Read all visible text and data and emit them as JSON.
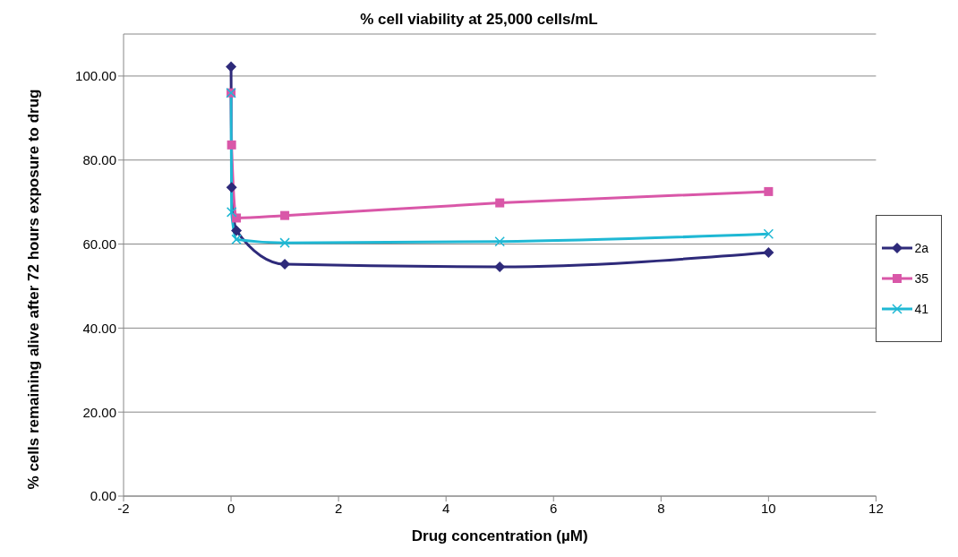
{
  "chart_data": {
    "type": "line",
    "title": "% cell viability at 25,000 cells/mL",
    "xlabel": "Drug concentration (µM)",
    "ylabel": "% cells remaining alive after 72 hours exposure to drug",
    "series": [
      {
        "name": "2a",
        "color": "#2e2a7a",
        "marker": "diamond",
        "x": [
          0,
          0.01,
          0.1,
          1,
          5,
          10
        ],
        "values": [
          102.2,
          73.5,
          63.2,
          55.2,
          54.6,
          58.0
        ]
      },
      {
        "name": "35",
        "color": "#d957a8",
        "marker": "square",
        "x": [
          0,
          0.01,
          0.1,
          1,
          5,
          10
        ],
        "values": [
          96.0,
          83.6,
          66.2,
          66.8,
          69.8,
          72.5
        ]
      },
      {
        "name": "41",
        "color": "#1fb8d4",
        "marker": "cross",
        "x": [
          0,
          0.01,
          0.1,
          1,
          5,
          10
        ],
        "values": [
          96.0,
          67.6,
          61.1,
          60.3,
          60.6,
          62.4
        ]
      }
    ],
    "xlim": [
      -2,
      12
    ],
    "xticks": [
      -2,
      0,
      2,
      4,
      6,
      8,
      10,
      12
    ],
    "ylim": [
      0,
      110
    ],
    "yticks": [
      {
        "value": 0,
        "label": "0.00"
      },
      {
        "value": 20,
        "label": "20.00"
      },
      {
        "value": 40,
        "label": "40.00"
      },
      {
        "value": 60,
        "label": "60.00"
      },
      {
        "value": 80,
        "label": "80.00"
      },
      {
        "value": 100,
        "label": "100.00"
      }
    ],
    "grid": "y",
    "legend": "right"
  }
}
